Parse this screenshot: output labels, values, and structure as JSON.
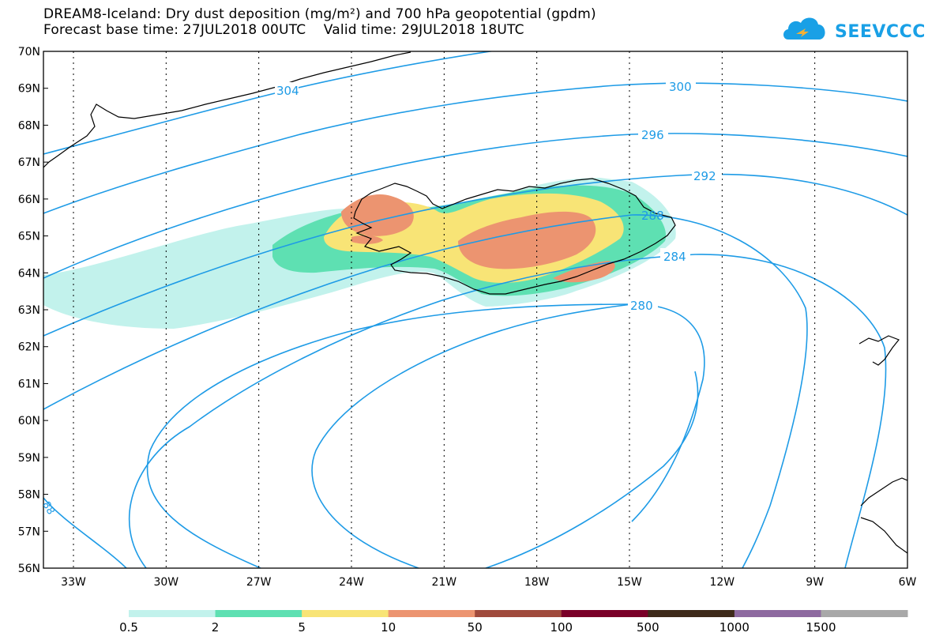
{
  "title": {
    "line1": "DREAM8-Iceland: Dry dust deposition (mg/m²) and 700 hPa geopotential (gpdm)",
    "line2": "Forecast base time: 27JUL2018 00UTC    Valid time: 29JUL2018 18UTC"
  },
  "logo": {
    "text": "SEEVCCC",
    "icon": "cloud-icon",
    "color": "#19a0e6"
  },
  "map": {
    "lat_labels": [
      "70N",
      "69N",
      "68N",
      "67N",
      "66N",
      "65N",
      "64N",
      "63N",
      "62N",
      "61N",
      "60N",
      "59N",
      "58N",
      "57N",
      "56N"
    ],
    "lon_labels": [
      "33W",
      "30W",
      "27W",
      "24W",
      "21W",
      "18W",
      "15W",
      "12W",
      "9W",
      "6W"
    ],
    "contour_color": "#1e9be6",
    "contour_labels": [
      "304",
      "300",
      "296",
      "292",
      "288",
      "284",
      "280",
      "88"
    ]
  },
  "colorbar": {
    "colors": [
      "#c2f2ec",
      "#5ee0b2",
      "#f8e476",
      "#ec9470",
      "#a04a3c",
      "#7a0028",
      "#3e2a1a",
      "#8e6aa0",
      "#a8a8a8"
    ],
    "labels": [
      "0.5",
      "2",
      "5",
      "10",
      "50",
      "100",
      "500",
      "1000",
      "1500"
    ]
  }
}
